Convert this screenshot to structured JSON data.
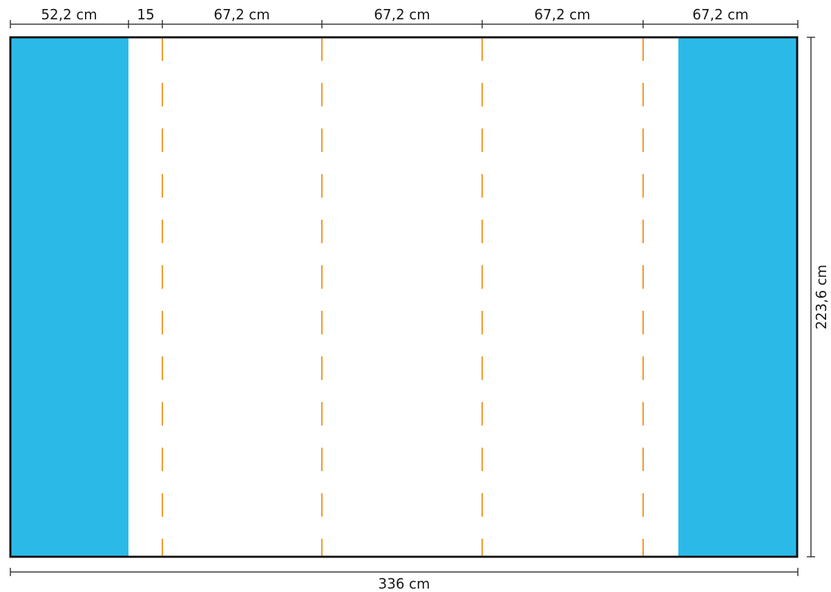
{
  "diagram": {
    "total_width_label": "336 cm",
    "height_label": "223,6 cm",
    "segments": [
      {
        "label": "52,2 cm",
        "value_cm": 52.2
      },
      {
        "label": "15",
        "value_cm": 15
      },
      {
        "label": "67,2 cm",
        "value_cm": 67.2
      },
      {
        "label": "67,2 cm",
        "value_cm": 67.2
      },
      {
        "label": "67,2 cm",
        "value_cm": 67.2
      },
      {
        "label": "67,2 cm",
        "value_cm": 67.2
      }
    ],
    "colors": {
      "side_panel": "#2bbae8",
      "cut_line": "#f0982a",
      "outline": "#111111",
      "dimension_line": "#333333"
    }
  }
}
